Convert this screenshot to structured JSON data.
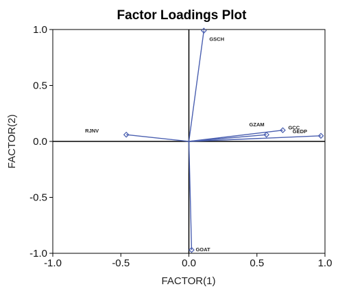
{
  "chart_data": {
    "type": "scatter",
    "title": "Factor Loadings Plot",
    "xlabel": "FACTOR(1)",
    "ylabel": "FACTOR(2)",
    "xlim": [
      -1.0,
      1.0
    ],
    "ylim": [
      -1.0,
      1.0
    ],
    "x_ticks": [
      "-1.0",
      "-0.5",
      "0.0",
      "0.5",
      "1.0"
    ],
    "y_ticks": [
      "1.0",
      "0.5",
      "0.0",
      "-0.5",
      "-1.0"
    ],
    "x_tick_values": [
      -1.0,
      -0.5,
      0.0,
      0.5,
      1.0
    ],
    "y_tick_values": [
      1.0,
      0.5,
      0.0,
      -0.5,
      -1.0
    ],
    "grid": false,
    "vectors_from_origin": true,
    "points": [
      {
        "label": "GSCH",
        "x": 0.11,
        "y": 0.99
      },
      {
        "label": "RJNV",
        "x": -0.46,
        "y": 0.06
      },
      {
        "label": "GZAM",
        "x": 0.57,
        "y": 0.06
      },
      {
        "label": "GCC",
        "x": 0.69,
        "y": 0.1
      },
      {
        "label": "GEDP",
        "x": 0.97,
        "y": 0.05
      },
      {
        "label": "GOAT",
        "x": 0.02,
        "y": -0.97
      }
    ],
    "colors": {
      "series": "#4a5fb0",
      "axes": "#000000"
    }
  }
}
